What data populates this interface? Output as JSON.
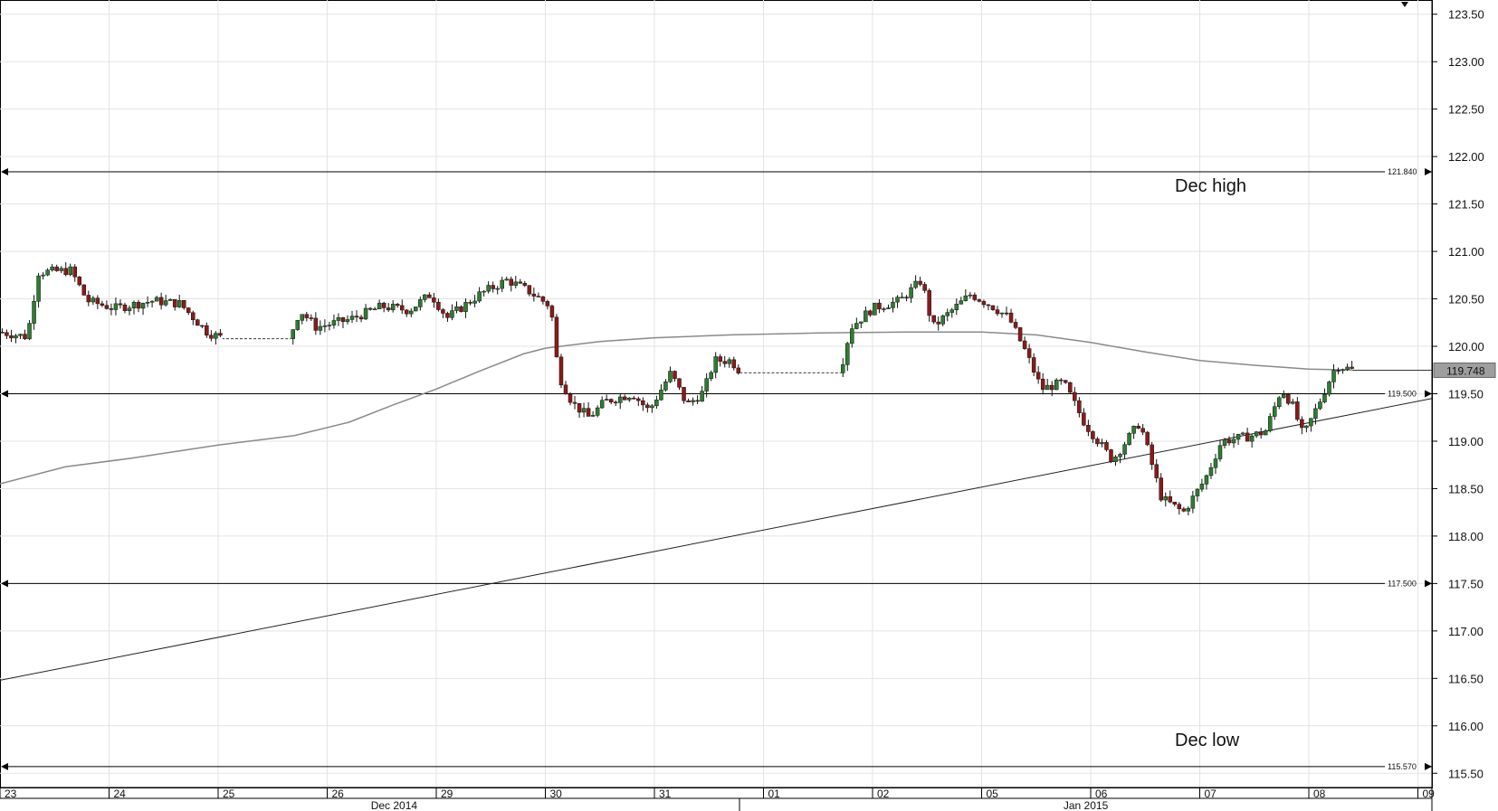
{
  "chart_data": {
    "type": "candlestick",
    "title": "",
    "xlabel": "",
    "ylabel": "",
    "ylim": [
      115.35,
      123.65
    ],
    "y_ticks": [
      "115.50",
      "116.00",
      "116.50",
      "117.00",
      "117.50",
      "118.00",
      "118.50",
      "119.00",
      "119.50",
      "120.00",
      "120.50",
      "121.00",
      "121.50",
      "122.00",
      "122.50",
      "123.00",
      "123.50"
    ],
    "day_labels": [
      "23",
      "24",
      "25",
      "26",
      "29",
      "30",
      "31",
      "01",
      "02",
      "05",
      "06",
      "07",
      "08",
      "09"
    ],
    "month_labels": [
      "Dec 2014",
      "Jan 2015"
    ],
    "current_price": "119.748",
    "levels": [
      {
        "value": 121.84,
        "label": "121.840",
        "annotation": "Dec high"
      },
      {
        "value": 119.5,
        "label": "119.500",
        "annotation": ""
      },
      {
        "value": 117.5,
        "label": "117.500",
        "annotation": ""
      },
      {
        "value": 115.57,
        "label": "115.570",
        "annotation": "Dec low"
      }
    ],
    "trendline": {
      "from": 116.48,
      "to": 119.45
    },
    "moving_average": [
      {
        "d": 0.0,
        "v": 118.55
      },
      {
        "d": 0.6,
        "v": 118.73
      },
      {
        "d": 1.2,
        "v": 118.82
      },
      {
        "d": 2.0,
        "v": 118.96
      },
      {
        "d": 2.7,
        "v": 119.06
      },
      {
        "d": 3.2,
        "v": 119.2
      },
      {
        "d": 3.6,
        "v": 119.38
      },
      {
        "d": 4.0,
        "v": 119.55
      },
      {
        "d": 4.4,
        "v": 119.74
      },
      {
        "d": 4.8,
        "v": 119.92
      },
      {
        "d": 5.0,
        "v": 119.98
      },
      {
        "d": 5.5,
        "v": 120.05
      },
      {
        "d": 6.0,
        "v": 120.09
      },
      {
        "d": 6.7,
        "v": 120.12
      },
      {
        "d": 7.5,
        "v": 120.14
      },
      {
        "d": 8.3,
        "v": 120.15
      },
      {
        "d": 9.0,
        "v": 120.15
      },
      {
        "d": 9.5,
        "v": 120.12
      },
      {
        "d": 10.0,
        "v": 120.04
      },
      {
        "d": 10.5,
        "v": 119.94
      },
      {
        "d": 11.0,
        "v": 119.85
      },
      {
        "d": 11.5,
        "v": 119.8
      },
      {
        "d": 12.0,
        "v": 119.76
      },
      {
        "d": 12.4,
        "v": 119.75
      }
    ],
    "price_path": [
      {
        "d": 0.0,
        "v": 120.15
      },
      {
        "d": 0.25,
        "v": 120.1
      },
      {
        "d": 0.35,
        "v": 120.78
      },
      {
        "d": 0.65,
        "v": 120.8
      },
      {
        "d": 0.8,
        "v": 120.48
      },
      {
        "d": 1.05,
        "v": 120.4
      },
      {
        "d": 1.4,
        "v": 120.48
      },
      {
        "d": 1.65,
        "v": 120.45
      },
      {
        "d": 1.9,
        "v": 120.15
      },
      {
        "d": 2.05,
        "v": 120.08
      },
      {
        "d": 2.65,
        "v": 120.08,
        "gap": true
      },
      {
        "d": 2.75,
        "v": 120.38
      },
      {
        "d": 2.9,
        "v": 120.2
      },
      {
        "d": 3.2,
        "v": 120.28
      },
      {
        "d": 3.5,
        "v": 120.42
      },
      {
        "d": 3.75,
        "v": 120.38
      },
      {
        "d": 3.95,
        "v": 120.55
      },
      {
        "d": 4.1,
        "v": 120.3
      },
      {
        "d": 4.4,
        "v": 120.55
      },
      {
        "d": 4.65,
        "v": 120.7
      },
      {
        "d": 4.85,
        "v": 120.58
      },
      {
        "d": 5.05,
        "v": 120.42
      },
      {
        "d": 5.12,
        "v": 119.7
      },
      {
        "d": 5.25,
        "v": 119.4
      },
      {
        "d": 5.4,
        "v": 119.25
      },
      {
        "d": 5.55,
        "v": 119.42
      },
      {
        "d": 5.8,
        "v": 119.5
      },
      {
        "d": 5.95,
        "v": 119.32
      },
      {
        "d": 6.15,
        "v": 119.72
      },
      {
        "d": 6.3,
        "v": 119.38
      },
      {
        "d": 6.45,
        "v": 119.52
      },
      {
        "d": 6.55,
        "v": 119.85
      },
      {
        "d": 6.7,
        "v": 119.85
      },
      {
        "d": 6.8,
        "v": 119.72
      },
      {
        "d": 7.7,
        "v": 119.72,
        "gap": true
      },
      {
        "d": 7.8,
        "v": 120.2
      },
      {
        "d": 8.0,
        "v": 120.4
      },
      {
        "d": 8.25,
        "v": 120.48
      },
      {
        "d": 8.45,
        "v": 120.7
      },
      {
        "d": 8.55,
        "v": 120.2
      },
      {
        "d": 8.75,
        "v": 120.4
      },
      {
        "d": 8.9,
        "v": 120.55
      },
      {
        "d": 9.1,
        "v": 120.42
      },
      {
        "d": 9.25,
        "v": 120.3
      },
      {
        "d": 9.4,
        "v": 119.95
      },
      {
        "d": 9.55,
        "v": 119.55
      },
      {
        "d": 9.75,
        "v": 119.62
      },
      {
        "d": 9.95,
        "v": 119.18
      },
      {
        "d": 10.2,
        "v": 118.8
      },
      {
        "d": 10.45,
        "v": 119.2
      },
      {
        "d": 10.65,
        "v": 118.4
      },
      {
        "d": 10.85,
        "v": 118.25
      },
      {
        "d": 11.05,
        "v": 118.6
      },
      {
        "d": 11.2,
        "v": 119.0
      },
      {
        "d": 11.45,
        "v": 119.05
      },
      {
        "d": 11.6,
        "v": 119.1
      },
      {
        "d": 11.75,
        "v": 119.55
      },
      {
        "d": 11.85,
        "v": 119.38
      },
      {
        "d": 11.95,
        "v": 119.05
      },
      {
        "d": 12.1,
        "v": 119.42
      },
      {
        "d": 12.25,
        "v": 119.8
      },
      {
        "d": 12.4,
        "v": 119.75
      }
    ]
  }
}
